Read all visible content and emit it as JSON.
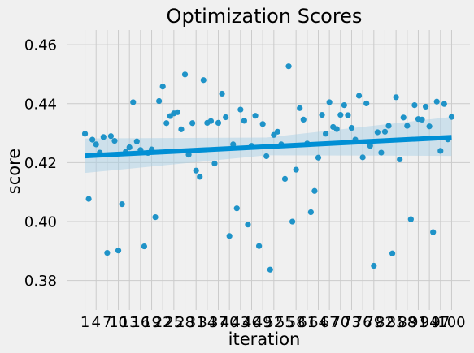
{
  "chart_data": {
    "type": "scatter",
    "title": "Optimization Scores",
    "xlabel": "iteration",
    "ylabel": "score",
    "ylim": [
      0.37,
      0.465
    ],
    "yticks": [
      0.38,
      0.4,
      0.42,
      0.44,
      0.46
    ],
    "ytick_labels": [
      "0.38",
      "0.40",
      "0.42",
      "0.44",
      "0.46"
    ],
    "x_tick_labels": [
      "1",
      "4",
      "7",
      "10",
      "13",
      "16",
      "19",
      "22",
      "25",
      "28",
      "31",
      "34",
      "37",
      "40",
      "43",
      "46",
      "49",
      "52",
      "55",
      "58",
      "61",
      "64",
      "67",
      "70",
      "73",
      "76",
      "79",
      "82",
      "85",
      "88",
      "91",
      "94",
      "97",
      "100"
    ],
    "grid": true,
    "colors": {
      "points": "#1f93c8",
      "trend": "#008fd5",
      "band": "#a9cfe6",
      "background": "#f0f0f0",
      "grid": "#cbcbcb"
    },
    "points": [
      {
        "x": 1,
        "y": 0.4298
      },
      {
        "x": 2,
        "y": 0.4077
      },
      {
        "x": 3,
        "y": 0.4278
      },
      {
        "x": 4,
        "y": 0.4262
      },
      {
        "x": 5,
        "y": 0.4234
      },
      {
        "x": 6,
        "y": 0.4287
      },
      {
        "x": 7,
        "y": 0.3894
      },
      {
        "x": 8,
        "y": 0.429
      },
      {
        "x": 9,
        "y": 0.4274
      },
      {
        "x": 10,
        "y": 0.3902
      },
      {
        "x": 11,
        "y": 0.4059
      },
      {
        "x": 12,
        "y": 0.4237
      },
      {
        "x": 13,
        "y": 0.4252
      },
      {
        "x": 14,
        "y": 0.4405
      },
      {
        "x": 15,
        "y": 0.4272
      },
      {
        "x": 16,
        "y": 0.4243
      },
      {
        "x": 17,
        "y": 0.3916
      },
      {
        "x": 18,
        "y": 0.4233
      },
      {
        "x": 19,
        "y": 0.4245
      },
      {
        "x": 20,
        "y": 0.4015
      },
      {
        "x": 21,
        "y": 0.4409
      },
      {
        "x": 22,
        "y": 0.4458
      },
      {
        "x": 23,
        "y": 0.4334
      },
      {
        "x": 24,
        "y": 0.4358
      },
      {
        "x": 25,
        "y": 0.4367
      },
      {
        "x": 26,
        "y": 0.4371
      },
      {
        "x": 27,
        "y": 0.4313
      },
      {
        "x": 28,
        "y": 0.4499
      },
      {
        "x": 29,
        "y": 0.4227
      },
      {
        "x": 30,
        "y": 0.4334
      },
      {
        "x": 31,
        "y": 0.4173
      },
      {
        "x": 32,
        "y": 0.4152
      },
      {
        "x": 33,
        "y": 0.448
      },
      {
        "x": 34,
        "y": 0.4335
      },
      {
        "x": 35,
        "y": 0.4341
      },
      {
        "x": 36,
        "y": 0.4197
      },
      {
        "x": 37,
        "y": 0.4335
      },
      {
        "x": 38,
        "y": 0.4434
      },
      {
        "x": 39,
        "y": 0.4354
      },
      {
        "x": 40,
        "y": 0.3951
      },
      {
        "x": 41,
        "y": 0.4262
      },
      {
        "x": 42,
        "y": 0.4045
      },
      {
        "x": 43,
        "y": 0.438
      },
      {
        "x": 44,
        "y": 0.4342
      },
      {
        "x": 45,
        "y": 0.399
      },
      {
        "x": 46,
        "y": 0.4257
      },
      {
        "x": 47,
        "y": 0.4359
      },
      {
        "x": 48,
        "y": 0.3917
      },
      {
        "x": 49,
        "y": 0.4331
      },
      {
        "x": 50,
        "y": 0.4222
      },
      {
        "x": 51,
        "y": 0.3837
      },
      {
        "x": 52,
        "y": 0.4294
      },
      {
        "x": 53,
        "y": 0.4305
      },
      {
        "x": 54,
        "y": 0.4262
      },
      {
        "x": 55,
        "y": 0.4145
      },
      {
        "x": 56,
        "y": 0.4527
      },
      {
        "x": 57,
        "y": 0.4
      },
      {
        "x": 58,
        "y": 0.4176
      },
      {
        "x": 59,
        "y": 0.4385
      },
      {
        "x": 60,
        "y": 0.4346
      },
      {
        "x": 61,
        "y": 0.4265
      },
      {
        "x": 62,
        "y": 0.4032
      },
      {
        "x": 63,
        "y": 0.4104
      },
      {
        "x": 64,
        "y": 0.4217
      },
      {
        "x": 65,
        "y": 0.4362
      },
      {
        "x": 66,
        "y": 0.4298
      },
      {
        "x": 67,
        "y": 0.4405
      },
      {
        "x": 68,
        "y": 0.4321
      },
      {
        "x": 69,
        "y": 0.4314
      },
      {
        "x": 70,
        "y": 0.4362
      },
      {
        "x": 71,
        "y": 0.4395
      },
      {
        "x": 72,
        "y": 0.4361
      },
      {
        "x": 73,
        "y": 0.4318
      },
      {
        "x": 74,
        "y": 0.4278
      },
      {
        "x": 75,
        "y": 0.4427
      },
      {
        "x": 76,
        "y": 0.4218
      },
      {
        "x": 77,
        "y": 0.4401
      },
      {
        "x": 78,
        "y": 0.4257
      },
      {
        "x": 79,
        "y": 0.385
      },
      {
        "x": 80,
        "y": 0.4303
      },
      {
        "x": 81,
        "y": 0.4234
      },
      {
        "x": 82,
        "y": 0.4305
      },
      {
        "x": 83,
        "y": 0.4325
      },
      {
        "x": 84,
        "y": 0.3892
      },
      {
        "x": 85,
        "y": 0.4422
      },
      {
        "x": 86,
        "y": 0.4211
      },
      {
        "x": 87,
        "y": 0.4353
      },
      {
        "x": 88,
        "y": 0.4325
      },
      {
        "x": 89,
        "y": 0.4008
      },
      {
        "x": 90,
        "y": 0.4395
      },
      {
        "x": 91,
        "y": 0.4348
      },
      {
        "x": 92,
        "y": 0.4346
      },
      {
        "x": 93,
        "y": 0.439
      },
      {
        "x": 94,
        "y": 0.4323
      },
      {
        "x": 95,
        "y": 0.3964
      },
      {
        "x": 96,
        "y": 0.4407
      },
      {
        "x": 97,
        "y": 0.424
      },
      {
        "x": 98,
        "y": 0.4399
      },
      {
        "x": 99,
        "y": 0.4279
      },
      {
        "x": 100,
        "y": 0.4355
      }
    ],
    "trend": {
      "x": [
        1,
        100
      ],
      "y": [
        0.4223,
        0.4286
      ]
    },
    "confidence_band": {
      "x": [
        1,
        50,
        100
      ],
      "lower": [
        0.4165,
        0.4225,
        0.4223
      ],
      "upper": [
        0.4282,
        0.4285,
        0.4355
      ]
    }
  }
}
